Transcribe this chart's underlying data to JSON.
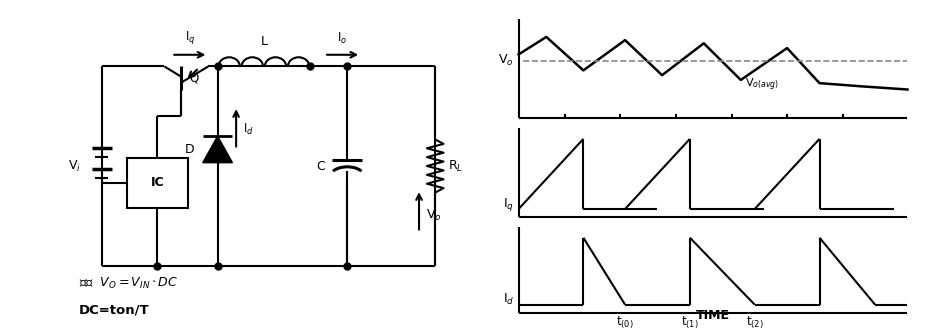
{
  "bg_color": "#ffffff",
  "line_color": "#000000",
  "fig_width": 9.26,
  "fig_height": 3.32,
  "circuit": {
    "vi_label": "V$_i$",
    "iq_label": "I$_q$",
    "io_label": "I$_o$",
    "ic_label": "IC",
    "d_label": "D",
    "l_label": "L",
    "c_label": "C",
    "rl_label": "R$_L$",
    "vo_label": "V$_o$",
    "id_label": "I$_d$",
    "q_label": "Q",
    "formula1": "输出  $V_O = V_{IN} \\cdot DC$",
    "formula2": "DC=ton/T"
  },
  "waveform": {
    "vo_label": "V$_o$",
    "voavg_label": "V$_{o(avg)}$",
    "iq_label": "I$_q$",
    "id_label": "I$_d$",
    "t0_label": "t$_{(0)}$",
    "t1_label": "t$_{(1)}$",
    "t2_label": "t$_{(2)}$",
    "time_label": "TIME"
  }
}
